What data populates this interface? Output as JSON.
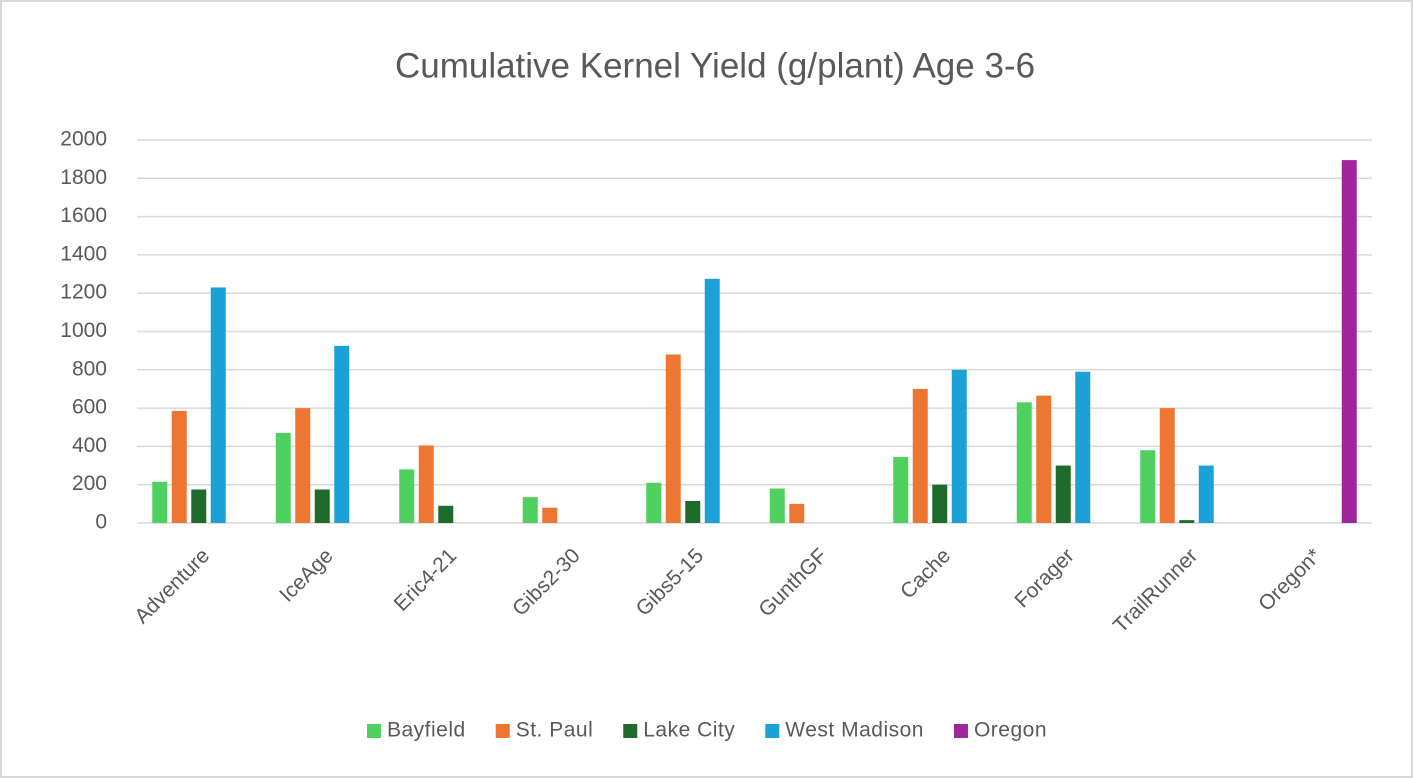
{
  "chart_data": {
    "type": "bar",
    "title": "Cumulative Kernel Yield (g/plant) Age 3-6",
    "categories": [
      "Adventure",
      "IceAge",
      "Eric4-21",
      "Gibs2-30",
      "Gibs5-15",
      "GunthGF",
      "Cache",
      "Forager",
      "TrailRunner",
      "Oregon*"
    ],
    "series": [
      {
        "name": "Bayfield",
        "color": "#4ed15f",
        "values": [
          215,
          470,
          280,
          135,
          210,
          180,
          345,
          630,
          380,
          null
        ]
      },
      {
        "name": "St. Paul",
        "color": "#ee7633",
        "values": [
          585,
          600,
          405,
          80,
          880,
          100,
          700,
          665,
          600,
          null
        ]
      },
      {
        "name": "Lake City",
        "color": "#1e6b2b",
        "values": [
          175,
          175,
          90,
          null,
          115,
          null,
          200,
          300,
          15,
          null
        ]
      },
      {
        "name": "West Madison",
        "color": "#1ba1d8",
        "values": [
          1230,
          925,
          null,
          null,
          1275,
          null,
          800,
          790,
          300,
          null
        ]
      },
      {
        "name": "Oregon",
        "color": "#a0269e",
        "values": [
          null,
          null,
          null,
          null,
          null,
          null,
          null,
          null,
          null,
          1895
        ]
      }
    ],
    "ylim": [
      0,
      2000
    ],
    "yticks": [
      0,
      200,
      400,
      600,
      800,
      1000,
      1200,
      1400,
      1600,
      1800,
      2000
    ],
    "grid": true,
    "legend": "bottom"
  }
}
